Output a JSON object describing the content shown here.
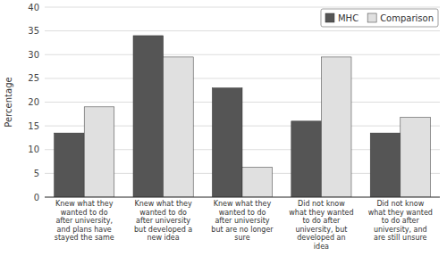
{
  "chart_data": {
    "type": "bar",
    "categories": [
      "Knew what they\nwanted to do\nafter university,\nand plans have\nstayed the same",
      "Knew what they\nwanted to do\nafter university\nbut developed a\nnew idea",
      "Knew what they\nwanted to do\nafter university\nbut are no longer\nsure",
      "Did not know\nwhat they wanted\nto do after\nuniversity, but\ndeveloped an\nidea",
      "Did not know\nwhat they wanted\nto do after\nuniversity, and\nare still unsure"
    ],
    "series": [
      {
        "name": "MHC",
        "color": "#555555",
        "values": [
          13.5,
          34.0,
          23.0,
          16.0,
          13.5
        ]
      },
      {
        "name": "Comparison",
        "color": "#e0e0e0",
        "values": [
          19.0,
          29.5,
          6.3,
          29.5,
          16.8
        ]
      }
    ],
    "ylabel": "Percentage",
    "ylim": [
      0,
      40
    ],
    "yticks": [
      0,
      5,
      10,
      15,
      20,
      25,
      30,
      35,
      40
    ],
    "grid": true,
    "legend": "upper right"
  }
}
